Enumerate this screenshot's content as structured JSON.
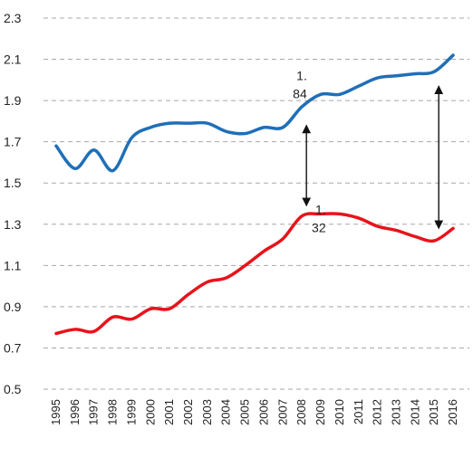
{
  "chart_data": {
    "type": "line",
    "title": "",
    "xlabel": "",
    "ylabel": "",
    "ylim": [
      0.5,
      2.3
    ],
    "yticks": [
      "0.5",
      "0.7",
      "0.9",
      "1.1",
      "1.3",
      "1.5",
      "1.7",
      "1.9",
      "2.1",
      "2.3"
    ],
    "grid": true,
    "x": [
      "1995",
      "1996",
      "1997",
      "1998",
      "1999",
      "2000",
      "2001",
      "2002",
      "2003",
      "2004",
      "2005",
      "2006",
      "2007",
      "2008",
      "2009",
      "2010",
      "2011",
      "2012",
      "2013",
      "2014",
      "2015",
      "2016"
    ],
    "series": [
      {
        "color": "#1f6fb8",
        "values": [
          1.68,
          1.57,
          1.66,
          1.56,
          1.72,
          1.77,
          1.79,
          1.79,
          1.79,
          1.75,
          1.74,
          1.77,
          1.77,
          1.87,
          1.93,
          1.93,
          1.97,
          2.01,
          2.02,
          2.03,
          2.04,
          2.12
        ]
      },
      {
        "color": "#e8131b",
        "values": [
          0.77,
          0.79,
          0.78,
          0.85,
          0.84,
          0.89,
          0.89,
          0.96,
          1.02,
          1.04,
          1.1,
          1.17,
          1.23,
          1.34,
          1.35,
          1.35,
          1.33,
          1.29,
          1.27,
          1.24,
          1.22,
          1.28
        ]
      }
    ],
    "annotations": [
      {
        "text_line1": "1.",
        "text_line2": "84",
        "x": "2008",
        "y": 1.93
      },
      {
        "text_line1": "1.",
        "text_line2": "32",
        "x": "2009",
        "y": 1.28
      }
    ],
    "arrows": [
      {
        "x": "2008",
        "y_from": 1.78,
        "y_to": 1.39
      },
      {
        "x": "2015",
        "y_from": 1.97,
        "y_to": 1.28
      }
    ]
  }
}
